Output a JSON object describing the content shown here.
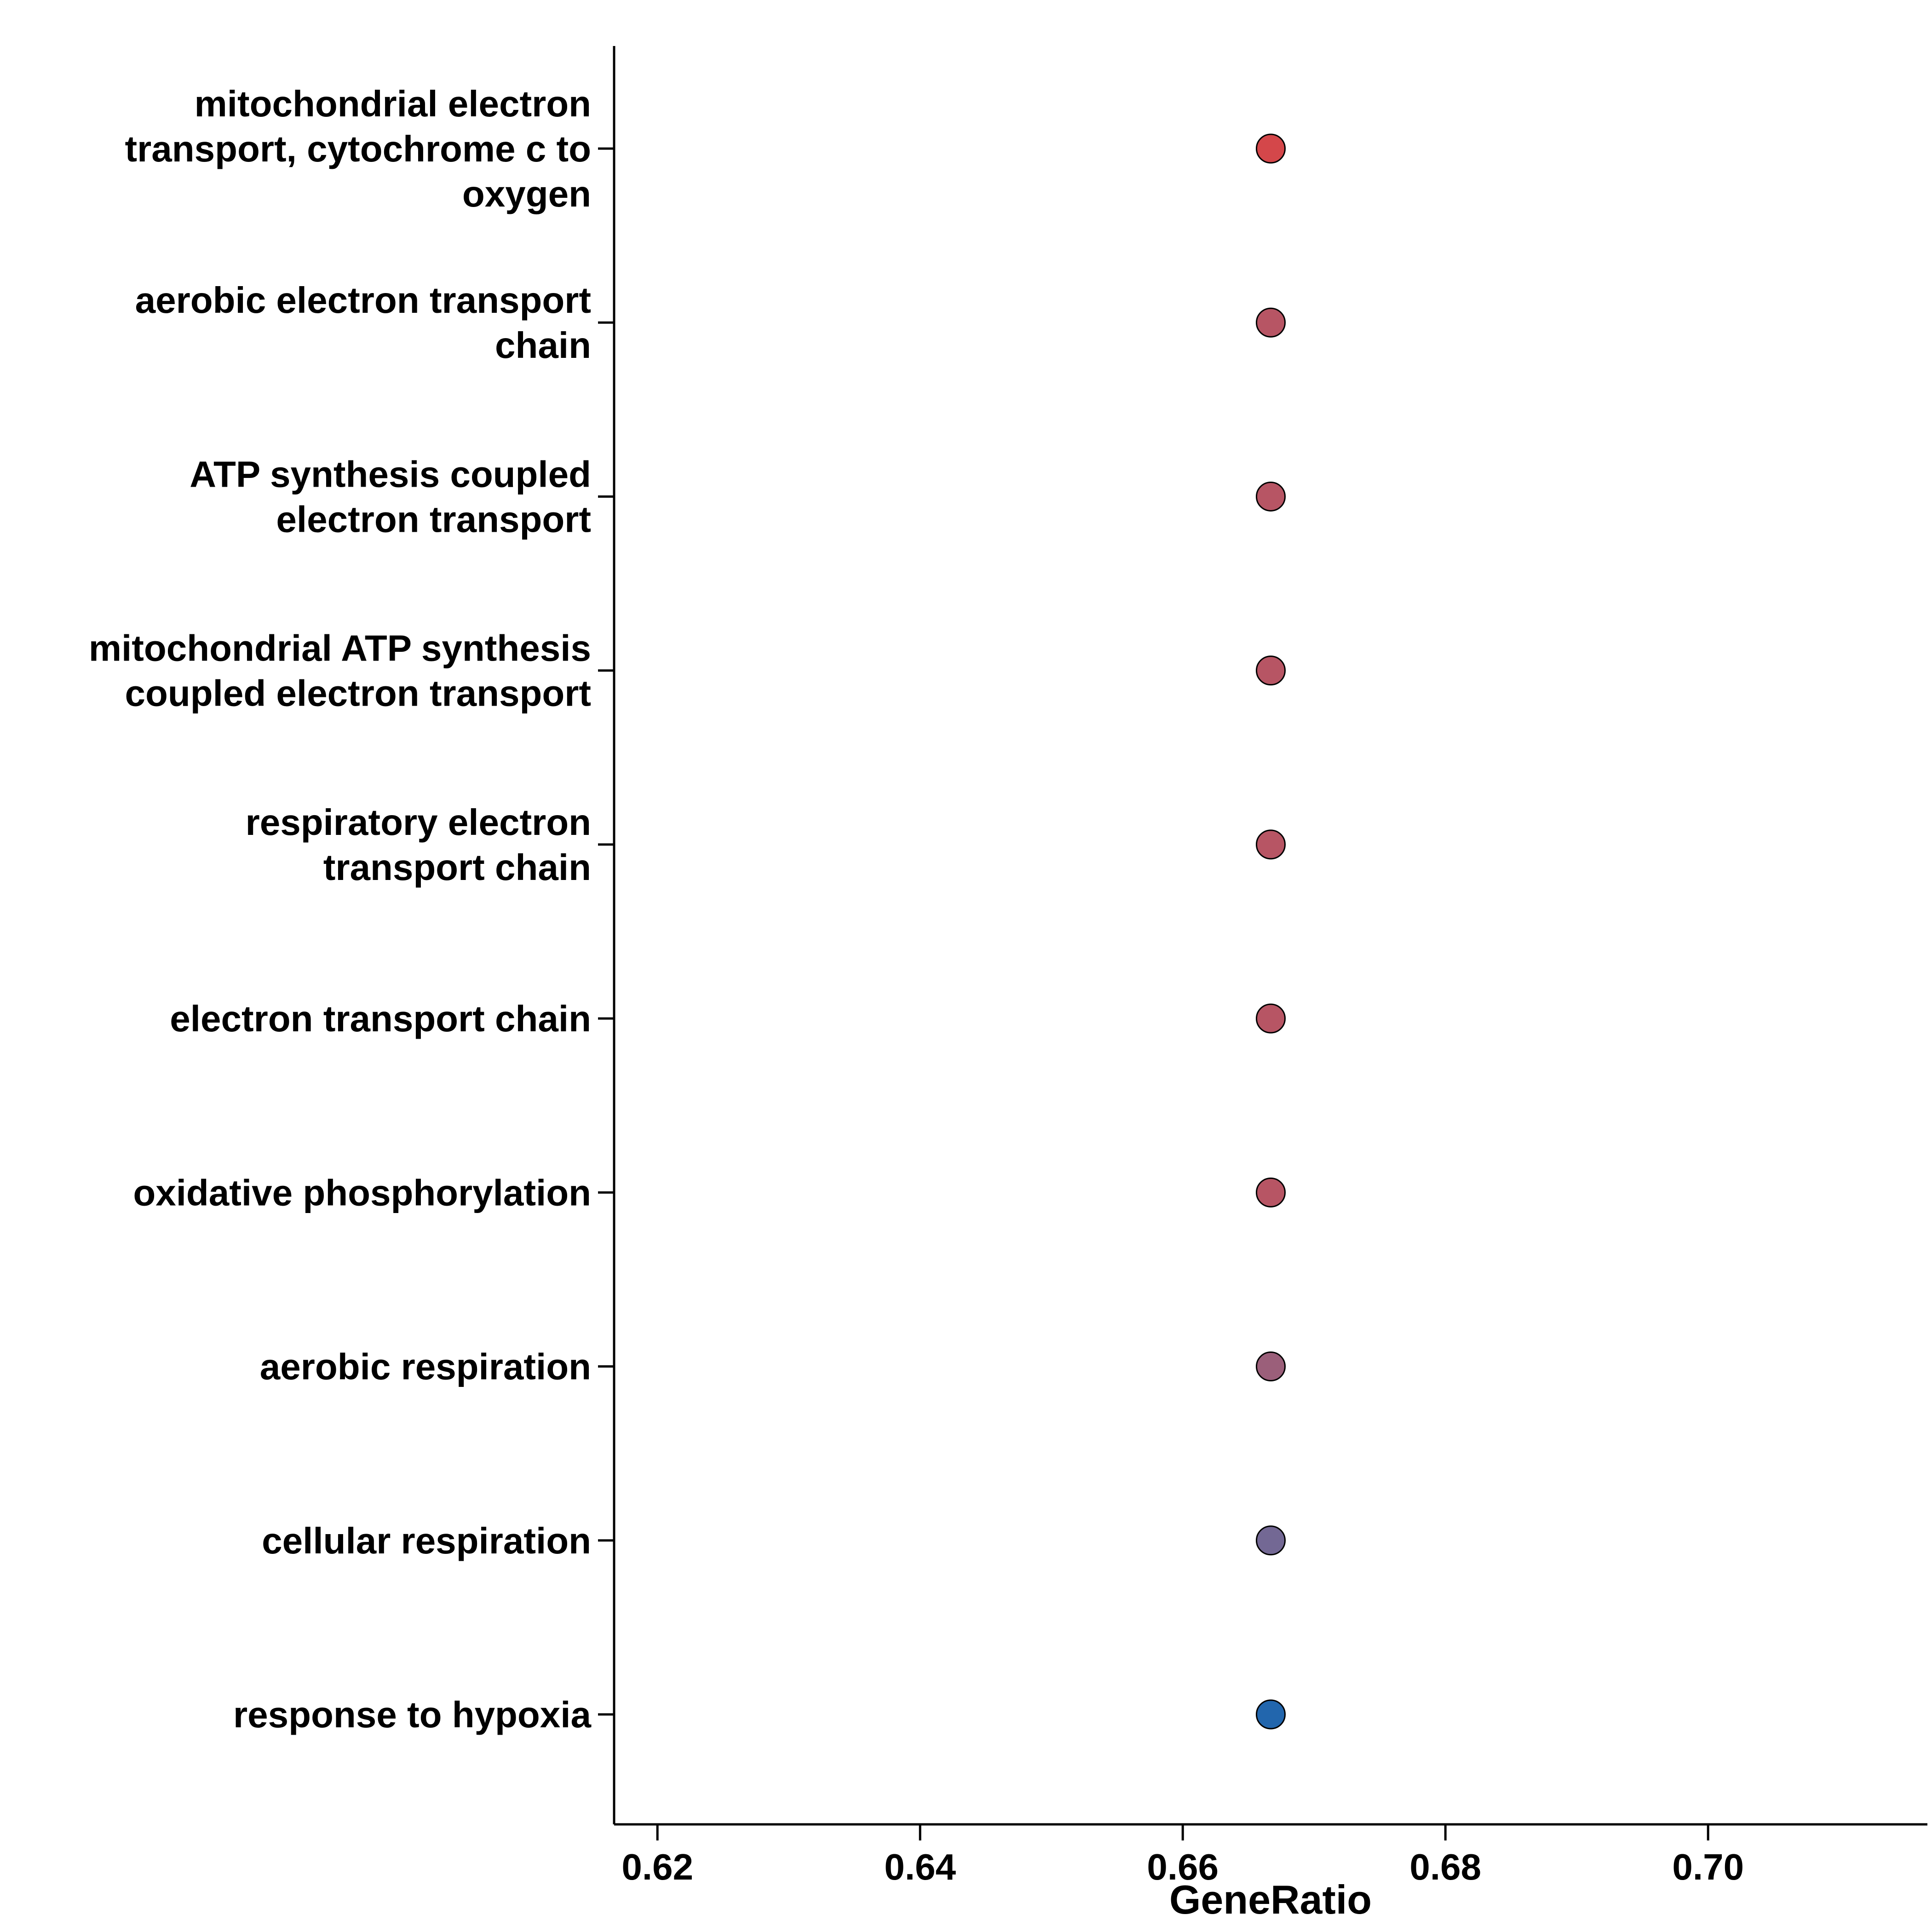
{
  "chart_data": {
    "type": "scatter",
    "xlabel": "GeneRatio",
    "ylabel": "",
    "title": "",
    "xlim": [
      0.6167,
      0.7167
    ],
    "x_ticks": [
      0.62,
      0.64,
      0.66,
      0.68,
      0.7
    ],
    "x_tick_labels": [
      "0.62",
      "0.64",
      "0.66",
      "0.68",
      "0.70"
    ],
    "grid": false,
    "legend": "none",
    "points": [
      {
        "category": "mitochondrial electron transport, cytochrome c to oxygen",
        "label_lines": [
          "mitochondrial electron",
          "transport, cytochrome c to",
          "oxygen"
        ],
        "x": 0.6667,
        "color": "#D4474A"
      },
      {
        "category": "aerobic electron transport chain",
        "label_lines": [
          "aerobic electron transport",
          "chain"
        ],
        "x": 0.6667,
        "color": "#B75564"
      },
      {
        "category": "ATP synthesis coupled electron transport",
        "label_lines": [
          "ATP synthesis coupled",
          "electron transport"
        ],
        "x": 0.6667,
        "color": "#B75564"
      },
      {
        "category": "mitochondrial ATP synthesis coupled electron transport",
        "label_lines": [
          "mitochondrial ATP synthesis",
          "coupled electron transport"
        ],
        "x": 0.6667,
        "color": "#B75564"
      },
      {
        "category": "respiratory electron transport chain",
        "label_lines": [
          "respiratory electron",
          "transport chain"
        ],
        "x": 0.6667,
        "color": "#B75564"
      },
      {
        "category": "electron transport chain",
        "label_lines": [
          "electron transport chain"
        ],
        "x": 0.6667,
        "color": "#B75564"
      },
      {
        "category": "oxidative phosphorylation",
        "label_lines": [
          "oxidative phosphorylation"
        ],
        "x": 0.6667,
        "color": "#B75564"
      },
      {
        "category": "aerobic respiration",
        "label_lines": [
          "aerobic respiration"
        ],
        "x": 0.6667,
        "color": "#9B5F7A"
      },
      {
        "category": "cellular respiration",
        "label_lines": [
          "cellular respiration"
        ],
        "x": 0.6667,
        "color": "#736894"
      },
      {
        "category": "response to hypoxia",
        "label_lines": [
          "response to hypoxia"
        ],
        "x": 0.6667,
        "color": "#2266AD"
      }
    ]
  }
}
